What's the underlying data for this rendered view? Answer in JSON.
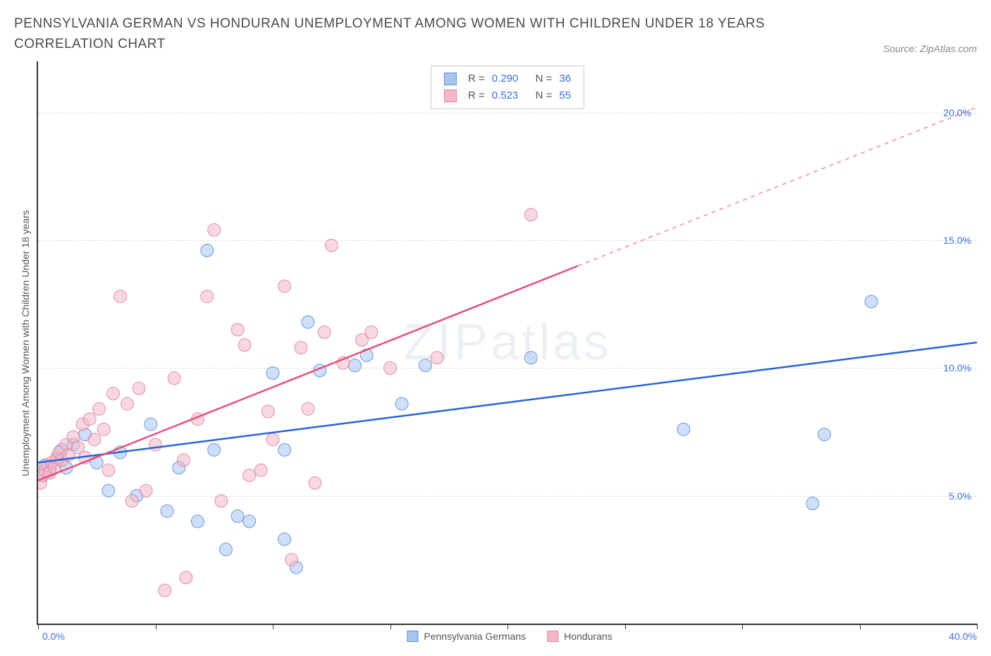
{
  "title": "PENNSYLVANIA GERMAN VS HONDURAN UNEMPLOYMENT AMONG WOMEN WITH CHILDREN UNDER 18 YEARS CORRELATION CHART",
  "source": "Source: ZipAtlas.com",
  "watermark": "ZIPatlas",
  "chart": {
    "type": "scatter",
    "y_label": "Unemployment Among Women with Children Under 18 years",
    "xlim": [
      0,
      40
    ],
    "ylim": [
      0,
      22
    ],
    "x_min_label": "0.0%",
    "x_max_label": "40.0%",
    "y_ticks": [
      5,
      10,
      15,
      20
    ],
    "y_tick_labels": [
      "5.0%",
      "10.0%",
      "15.0%",
      "20.0%"
    ],
    "x_tick_positions": [
      0,
      5,
      10,
      15,
      20,
      25,
      30,
      35,
      40
    ],
    "background_color": "#ffffff",
    "grid_color": "#dddddd",
    "axis_color": "#333333",
    "tick_label_color": "#3b6fd6",
    "marker_radius": 9,
    "marker_opacity": 0.55,
    "line_width": 2.5
  },
  "series": [
    {
      "name": "Pennsylvania Germans",
      "color_fill": "#a7c5f0",
      "color_stroke": "#5b8fd6",
      "line_color": "#2962d9",
      "R": "0.290",
      "N": "36",
      "trend": {
        "x1": 0,
        "y1": 6.3,
        "x2": 40,
        "y2": 11.0,
        "solid_until_x": 40
      },
      "points": [
        [
          0.2,
          5.8
        ],
        [
          0.3,
          6.2
        ],
        [
          0.5,
          6.0
        ],
        [
          0.8,
          6.4
        ],
        [
          1.0,
          6.8
        ],
        [
          1.2,
          6.1
        ],
        [
          1.5,
          7.0
        ],
        [
          2.0,
          7.4
        ],
        [
          2.5,
          6.3
        ],
        [
          3.0,
          5.2
        ],
        [
          3.5,
          6.7
        ],
        [
          4.2,
          5.0
        ],
        [
          4.8,
          7.8
        ],
        [
          5.5,
          4.4
        ],
        [
          6.0,
          6.1
        ],
        [
          6.8,
          4.0
        ],
        [
          7.2,
          14.6
        ],
        [
          7.5,
          6.8
        ],
        [
          8.0,
          2.9
        ],
        [
          8.5,
          4.2
        ],
        [
          9.0,
          4.0
        ],
        [
          10.0,
          9.8
        ],
        [
          10.5,
          6.8
        ],
        [
          11.0,
          2.2
        ],
        [
          11.5,
          11.8
        ],
        [
          12.0,
          9.9
        ],
        [
          13.5,
          10.1
        ],
        [
          14.0,
          10.5
        ],
        [
          15.5,
          8.6
        ],
        [
          16.5,
          10.1
        ],
        [
          21.0,
          10.4
        ],
        [
          27.5,
          7.6
        ],
        [
          33.0,
          4.7
        ],
        [
          33.5,
          7.4
        ],
        [
          35.5,
          12.6
        ],
        [
          10.5,
          3.3
        ]
      ]
    },
    {
      "name": "Hondurans",
      "color_fill": "#f2b8c6",
      "color_stroke": "#e380a0",
      "line_color": "#e94f7a",
      "R": "0.523",
      "N": "55",
      "trend": {
        "x1": 0,
        "y1": 5.6,
        "x2": 40,
        "y2": 20.2,
        "solid_until_x": 23
      },
      "points": [
        [
          0.1,
          5.5
        ],
        [
          0.2,
          5.8
        ],
        [
          0.3,
          6.0
        ],
        [
          0.4,
          6.2
        ],
        [
          0.5,
          5.9
        ],
        [
          0.6,
          6.3
        ],
        [
          0.7,
          6.1
        ],
        [
          0.8,
          6.5
        ],
        [
          0.9,
          6.7
        ],
        [
          1.0,
          6.4
        ],
        [
          1.2,
          7.0
        ],
        [
          1.3,
          6.6
        ],
        [
          1.5,
          7.3
        ],
        [
          1.7,
          6.9
        ],
        [
          1.9,
          7.8
        ],
        [
          2.0,
          6.5
        ],
        [
          2.2,
          8.0
        ],
        [
          2.4,
          7.2
        ],
        [
          2.6,
          8.4
        ],
        [
          2.8,
          7.6
        ],
        [
          3.0,
          6.0
        ],
        [
          3.2,
          9.0
        ],
        [
          3.5,
          12.8
        ],
        [
          3.8,
          8.6
        ],
        [
          4.0,
          4.8
        ],
        [
          4.3,
          9.2
        ],
        [
          4.6,
          5.2
        ],
        [
          5.0,
          7.0
        ],
        [
          5.4,
          1.3
        ],
        [
          5.8,
          9.6
        ],
        [
          6.2,
          6.4
        ],
        [
          6.3,
          1.8
        ],
        [
          6.8,
          8.0
        ],
        [
          7.2,
          12.8
        ],
        [
          7.5,
          15.4
        ],
        [
          7.8,
          4.8
        ],
        [
          8.5,
          11.5
        ],
        [
          8.8,
          10.9
        ],
        [
          9.0,
          5.8
        ],
        [
          9.5,
          6.0
        ],
        [
          9.8,
          8.3
        ],
        [
          10.5,
          13.2
        ],
        [
          10.8,
          2.5
        ],
        [
          11.2,
          10.8
        ],
        [
          11.5,
          8.4
        ],
        [
          11.8,
          5.5
        ],
        [
          12.2,
          11.4
        ],
        [
          12.5,
          14.8
        ],
        [
          13.0,
          10.2
        ],
        [
          13.8,
          11.1
        ],
        [
          14.2,
          11.4
        ],
        [
          15.0,
          10.0
        ],
        [
          17.0,
          10.4
        ],
        [
          21.0,
          16.0
        ],
        [
          10.0,
          7.2
        ]
      ]
    }
  ],
  "legend": {
    "series1_label": "Pennsylvania Germans",
    "series2_label": "Hondurans"
  }
}
